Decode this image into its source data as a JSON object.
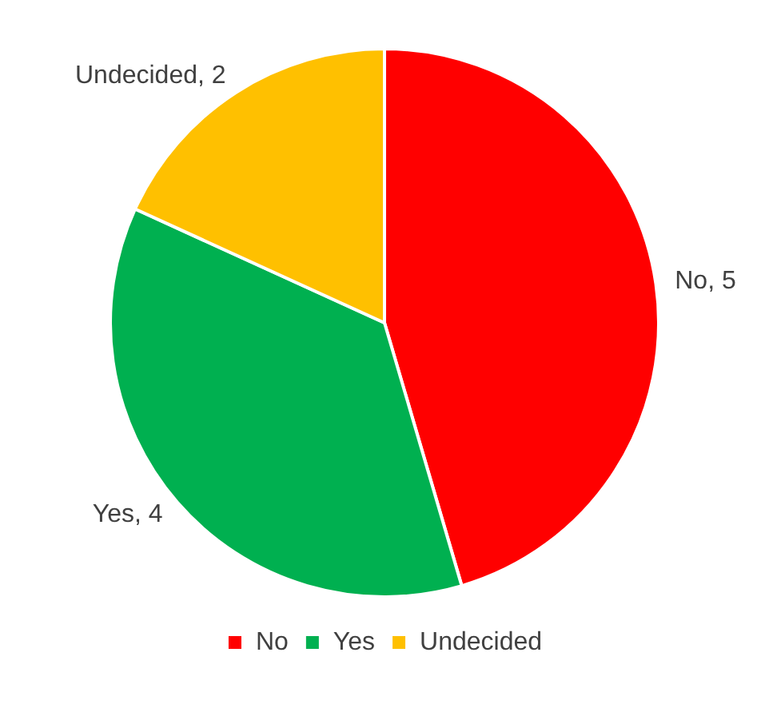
{
  "chart_data": {
    "type": "pie",
    "categories": [
      "No",
      "Yes",
      "Undecided"
    ],
    "values": [
      5,
      4,
      2
    ],
    "colors": [
      "#ff0000",
      "#00b050",
      "#ffc000"
    ],
    "value_labels": [
      "No, 5",
      "Yes, 4",
      "Undecided, 2"
    ],
    "legend": "bottom"
  }
}
